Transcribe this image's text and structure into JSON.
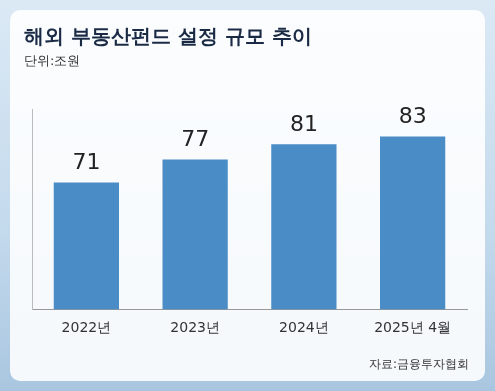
{
  "chart_data": {
    "type": "bar",
    "title": "해외 부동산펀드 설정 규모 추이",
    "subtitle": "단위:조원",
    "source": "자료:금융투자협회",
    "categories": [
      "2022년",
      "2023년",
      "2024년",
      "2025년 4월"
    ],
    "values": [
      71,
      77,
      81,
      83
    ],
    "color": "#4a8cc6",
    "ylim": [
      38,
      90
    ],
    "grid": false,
    "data_labels": true,
    "tick_labels": "x"
  }
}
